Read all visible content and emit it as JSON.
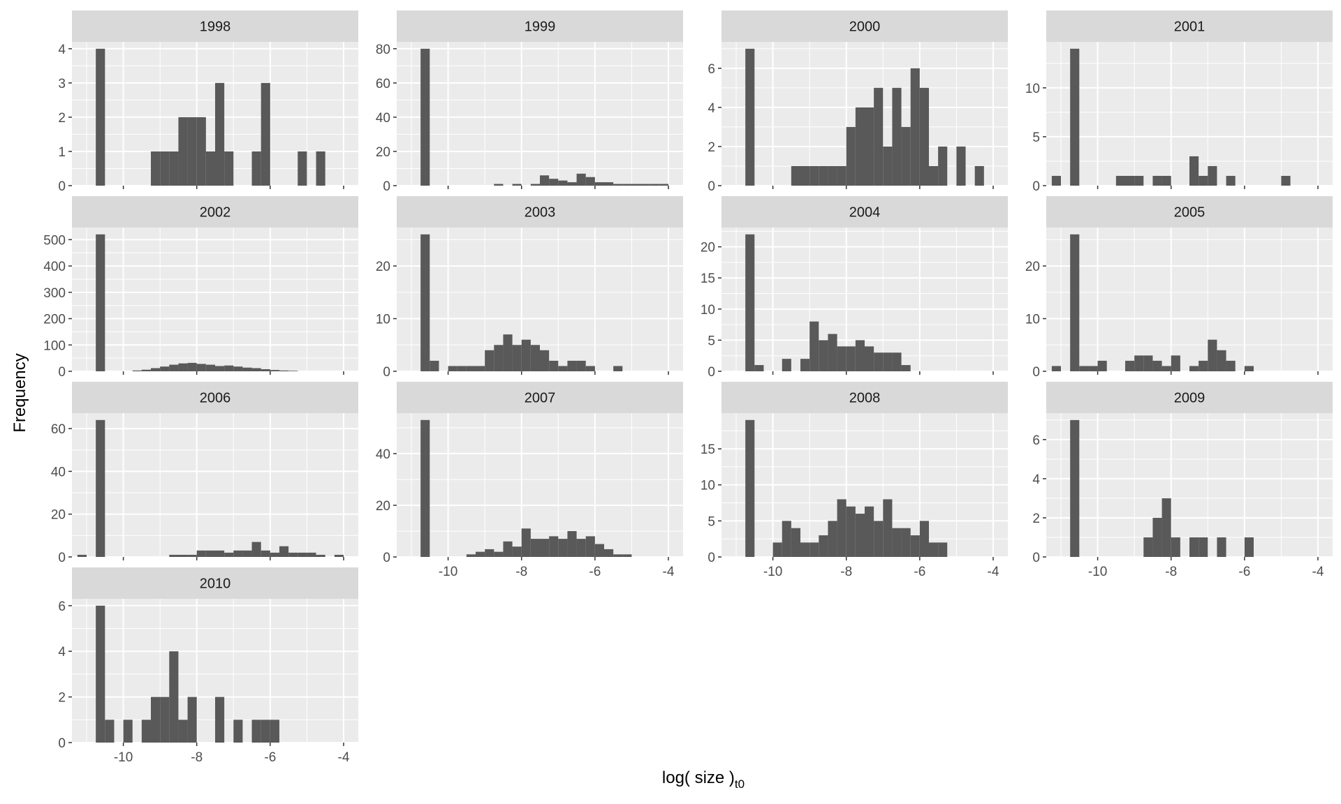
{
  "chart_data": {
    "type": "bar",
    "subtype": "faceted-histogram",
    "title": "",
    "xlabel": "log( size )",
    "xlabel_subscript": "t0",
    "ylabel": "Frequency",
    "xlim": [
      -11.4,
      -3.6
    ],
    "x_ticks": [
      -10,
      -8,
      -6,
      -4
    ],
    "x_tick_labels": [
      "-10",
      "-8",
      "-6",
      "-4"
    ],
    "bin_width": 0.25,
    "bar_color": "#595959",
    "panel_background": "#ebebeb",
    "strip_background": "#d9d9d9",
    "grid": true,
    "facets": [
      {
        "label": "1998",
        "ylim": [
          0,
          4.2
        ],
        "y_ticks": [
          0,
          1,
          2,
          3,
          4
        ],
        "y_tick_labels": [
          "0",
          "1",
          "2",
          "3",
          "4"
        ],
        "bins": [
          [
            -10.625,
            4
          ],
          [
            -9.125,
            1
          ],
          [
            -8.875,
            1
          ],
          [
            -8.625,
            1
          ],
          [
            -8.375,
            2
          ],
          [
            -8.125,
            2
          ],
          [
            -7.875,
            2
          ],
          [
            -7.625,
            1
          ],
          [
            -7.375,
            3
          ],
          [
            -7.125,
            1
          ],
          [
            -6.375,
            1
          ],
          [
            -6.125,
            3
          ],
          [
            -5.125,
            1
          ],
          [
            -4.625,
            1
          ]
        ]
      },
      {
        "label": "1999",
        "ylim": [
          0,
          84
        ],
        "y_ticks": [
          0,
          20,
          40,
          60,
          80
        ],
        "y_tick_labels": [
          "0",
          "20",
          "40",
          "60",
          "80"
        ],
        "bins": [
          [
            -10.625,
            80
          ],
          [
            -8.625,
            1
          ],
          [
            -8.125,
            1
          ],
          [
            -7.625,
            1
          ],
          [
            -7.375,
            6
          ],
          [
            -7.125,
            4
          ],
          [
            -6.875,
            3
          ],
          [
            -6.625,
            2
          ],
          [
            -6.375,
            7
          ],
          [
            -6.125,
            5
          ],
          [
            -5.875,
            2
          ],
          [
            -5.625,
            2
          ],
          [
            -5.375,
            1
          ],
          [
            -5.125,
            1
          ],
          [
            -4.875,
            1
          ],
          [
            -4.625,
            1
          ],
          [
            -4.375,
            1
          ],
          [
            -4.125,
            1
          ]
        ]
      },
      {
        "label": "2000",
        "ylim": [
          0,
          7.35
        ],
        "y_ticks": [
          0,
          2,
          4,
          6
        ],
        "y_tick_labels": [
          "0",
          "2",
          "4",
          "6"
        ],
        "bins": [
          [
            -10.625,
            7
          ],
          [
            -9.375,
            1
          ],
          [
            -9.125,
            1
          ],
          [
            -8.875,
            1
          ],
          [
            -8.625,
            1
          ],
          [
            -8.375,
            1
          ],
          [
            -8.125,
            1
          ],
          [
            -7.875,
            3
          ],
          [
            -7.625,
            4
          ],
          [
            -7.375,
            4
          ],
          [
            -7.125,
            5
          ],
          [
            -6.875,
            2
          ],
          [
            -6.625,
            5
          ],
          [
            -6.375,
            3
          ],
          [
            -6.125,
            6
          ],
          [
            -5.875,
            5
          ],
          [
            -5.625,
            1
          ],
          [
            -5.375,
            2
          ],
          [
            -4.875,
            2
          ],
          [
            -4.375,
            1
          ]
        ]
      },
      {
        "label": "2001",
        "ylim": [
          0,
          14.7
        ],
        "y_ticks": [
          0,
          5,
          10
        ],
        "y_tick_labels": [
          "0",
          "5",
          "10"
        ],
        "bins": [
          [
            -11.125,
            1
          ],
          [
            -10.625,
            14
          ],
          [
            -9.375,
            1
          ],
          [
            -9.125,
            1
          ],
          [
            -8.875,
            1
          ],
          [
            -8.375,
            1
          ],
          [
            -8.125,
            1
          ],
          [
            -7.375,
            3
          ],
          [
            -7.125,
            1
          ],
          [
            -6.875,
            2
          ],
          [
            -6.375,
            1
          ],
          [
            -4.875,
            1
          ]
        ]
      },
      {
        "label": "2002",
        "ylim": [
          0,
          546
        ],
        "y_ticks": [
          0,
          100,
          200,
          300,
          400,
          500
        ],
        "y_tick_labels": [
          "0",
          "100",
          "200",
          "300",
          "400",
          "500"
        ],
        "bins": [
          [
            -10.625,
            520
          ],
          [
            -9.625,
            3
          ],
          [
            -9.375,
            6
          ],
          [
            -9.125,
            12
          ],
          [
            -8.875,
            18
          ],
          [
            -8.625,
            25
          ],
          [
            -8.375,
            30
          ],
          [
            -8.125,
            32
          ],
          [
            -7.875,
            28
          ],
          [
            -7.625,
            25
          ],
          [
            -7.375,
            20
          ],
          [
            -7.125,
            22
          ],
          [
            -6.875,
            18
          ],
          [
            -6.625,
            14
          ],
          [
            -6.375,
            12
          ],
          [
            -6.125,
            8
          ],
          [
            -5.875,
            5
          ],
          [
            -5.625,
            3
          ],
          [
            -5.375,
            2
          ]
        ]
      },
      {
        "label": "2003",
        "ylim": [
          0,
          27.3
        ],
        "y_ticks": [
          0,
          10,
          20
        ],
        "y_tick_labels": [
          "0",
          "10",
          "20"
        ],
        "bins": [
          [
            -10.625,
            26
          ],
          [
            -10.375,
            2
          ],
          [
            -9.875,
            1
          ],
          [
            -9.625,
            1
          ],
          [
            -9.375,
            1
          ],
          [
            -9.125,
            1
          ],
          [
            -8.875,
            4
          ],
          [
            -8.625,
            5
          ],
          [
            -8.375,
            7
          ],
          [
            -8.125,
            5
          ],
          [
            -7.875,
            6
          ],
          [
            -7.625,
            5
          ],
          [
            -7.375,
            4
          ],
          [
            -7.125,
            2
          ],
          [
            -6.875,
            1
          ],
          [
            -6.625,
            2
          ],
          [
            -6.375,
            2
          ],
          [
            -6.125,
            1
          ],
          [
            -5.375,
            1
          ]
        ]
      },
      {
        "label": "2004",
        "ylim": [
          0,
          23.1
        ],
        "y_ticks": [
          0,
          5,
          10,
          15,
          20
        ],
        "y_tick_labels": [
          "0",
          "5",
          "10",
          "15",
          "20"
        ],
        "bins": [
          [
            -10.625,
            22
          ],
          [
            -10.375,
            1
          ],
          [
            -9.625,
            2
          ],
          [
            -9.125,
            2
          ],
          [
            -8.875,
            8
          ],
          [
            -8.625,
            5
          ],
          [
            -8.375,
            6
          ],
          [
            -8.125,
            4
          ],
          [
            -7.875,
            4
          ],
          [
            -7.625,
            5
          ],
          [
            -7.375,
            4
          ],
          [
            -7.125,
            3
          ],
          [
            -6.875,
            3
          ],
          [
            -6.625,
            3
          ],
          [
            -6.375,
            1
          ]
        ]
      },
      {
        "label": "2005",
        "ylim": [
          0,
          27.3
        ],
        "y_ticks": [
          0,
          10,
          20
        ],
        "y_tick_labels": [
          "0",
          "10",
          "20"
        ],
        "bins": [
          [
            -11.125,
            1
          ],
          [
            -10.625,
            26
          ],
          [
            -10.375,
            1
          ],
          [
            -10.125,
            1
          ],
          [
            -9.875,
            2
          ],
          [
            -9.125,
            2
          ],
          [
            -8.875,
            3
          ],
          [
            -8.625,
            3
          ],
          [
            -8.375,
            2
          ],
          [
            -8.125,
            1
          ],
          [
            -7.875,
            3
          ],
          [
            -7.375,
            1
          ],
          [
            -7.125,
            2
          ],
          [
            -6.875,
            6
          ],
          [
            -6.625,
            4
          ],
          [
            -6.375,
            2
          ],
          [
            -5.875,
            1
          ]
        ]
      },
      {
        "label": "2006",
        "ylim": [
          0,
          67.2
        ],
        "y_ticks": [
          0,
          20,
          40,
          60
        ],
        "y_tick_labels": [
          "0",
          "20",
          "40",
          "60"
        ],
        "bins": [
          [
            -11.125,
            1
          ],
          [
            -10.625,
            64
          ],
          [
            -8.625,
            1
          ],
          [
            -8.375,
            1
          ],
          [
            -8.125,
            1
          ],
          [
            -7.875,
            3
          ],
          [
            -7.625,
            3
          ],
          [
            -7.375,
            3
          ],
          [
            -7.125,
            2
          ],
          [
            -6.875,
            3
          ],
          [
            -6.625,
            3
          ],
          [
            -6.375,
            7
          ],
          [
            -6.125,
            3
          ],
          [
            -5.875,
            2
          ],
          [
            -5.625,
            5
          ],
          [
            -5.375,
            2
          ],
          [
            -5.125,
            2
          ],
          [
            -4.875,
            2
          ],
          [
            -4.625,
            1
          ],
          [
            -4.125,
            1
          ]
        ]
      },
      {
        "label": "2007",
        "ylim": [
          0,
          55.65
        ],
        "y_ticks": [
          0,
          20,
          40
        ],
        "y_tick_labels": [
          "0",
          "20",
          "40"
        ],
        "bins": [
          [
            -10.625,
            53
          ],
          [
            -9.375,
            1
          ],
          [
            -9.125,
            2
          ],
          [
            -8.875,
            3
          ],
          [
            -8.625,
            2
          ],
          [
            -8.375,
            6
          ],
          [
            -8.125,
            4
          ],
          [
            -7.875,
            11
          ],
          [
            -7.625,
            7
          ],
          [
            -7.375,
            7
          ],
          [
            -7.125,
            8
          ],
          [
            -6.875,
            7
          ],
          [
            -6.625,
            10
          ],
          [
            -6.375,
            7
          ],
          [
            -6.125,
            8
          ],
          [
            -5.875,
            5
          ],
          [
            -5.625,
            3
          ],
          [
            -5.375,
            1
          ],
          [
            -5.125,
            1
          ]
        ]
      },
      {
        "label": "2008",
        "ylim": [
          0,
          19.95
        ],
        "y_ticks": [
          0,
          5,
          10,
          15
        ],
        "y_tick_labels": [
          "0",
          "5",
          "10",
          "15"
        ],
        "bins": [
          [
            -10.625,
            19
          ],
          [
            -9.875,
            2
          ],
          [
            -9.625,
            5
          ],
          [
            -9.375,
            4
          ],
          [
            -9.125,
            2
          ],
          [
            -8.875,
            2
          ],
          [
            -8.625,
            3
          ],
          [
            -8.375,
            5
          ],
          [
            -8.125,
            8
          ],
          [
            -7.875,
            7
          ],
          [
            -7.625,
            6
          ],
          [
            -7.375,
            7
          ],
          [
            -7.125,
            5
          ],
          [
            -6.875,
            8
          ],
          [
            -6.625,
            4
          ],
          [
            -6.375,
            4
          ],
          [
            -6.125,
            3
          ],
          [
            -5.875,
            5
          ],
          [
            -5.625,
            2
          ],
          [
            -5.375,
            2
          ]
        ]
      },
      {
        "label": "2009",
        "ylim": [
          0,
          7.35
        ],
        "y_ticks": [
          0,
          2,
          4,
          6
        ],
        "y_tick_labels": [
          "0",
          "2",
          "4",
          "6"
        ],
        "bins": [
          [
            -10.625,
            7
          ],
          [
            -8.625,
            1
          ],
          [
            -8.375,
            2
          ],
          [
            -8.125,
            3
          ],
          [
            -7.875,
            1
          ],
          [
            -7.375,
            1
          ],
          [
            -7.125,
            1
          ],
          [
            -6.625,
            1
          ],
          [
            -5.875,
            1
          ]
        ]
      },
      {
        "label": "2010",
        "ylim": [
          0,
          6.3
        ],
        "y_ticks": [
          0,
          2,
          4,
          6
        ],
        "y_tick_labels": [
          "0",
          "2",
          "4",
          "6"
        ],
        "bins": [
          [
            -10.625,
            6
          ],
          [
            -10.375,
            1
          ],
          [
            -9.875,
            1
          ],
          [
            -9.375,
            1
          ],
          [
            -9.125,
            2
          ],
          [
            -8.875,
            2
          ],
          [
            -8.625,
            4
          ],
          [
            -8.375,
            1
          ],
          [
            -8.125,
            2
          ],
          [
            -7.375,
            2
          ],
          [
            -6.875,
            1
          ],
          [
            -6.375,
            1
          ],
          [
            -6.125,
            1
          ],
          [
            -5.875,
            1
          ]
        ]
      }
    ]
  }
}
